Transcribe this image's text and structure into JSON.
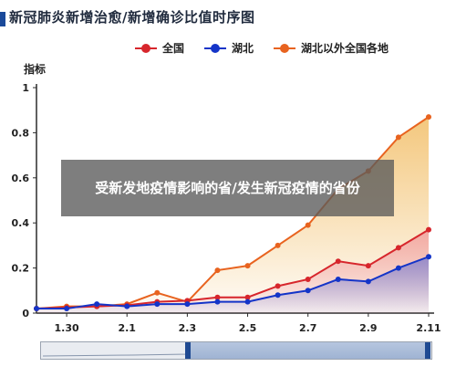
{
  "header": {
    "title": "新冠肺炎新增治愈/新增确诊比值时序图"
  },
  "overlay": {
    "caption": "受新发地疫情影响的省/发生新冠疫情的省份"
  },
  "colors": {
    "national": "#d7262c",
    "hubei": "#1434c8",
    "outside": "#e8631f",
    "title_bar": "#1a4a9a"
  },
  "chart_data": {
    "type": "line",
    "title": "新冠肺炎新增治愈/新增确诊比值时序图",
    "ylabel": "指标",
    "xlabel": "",
    "ylim": [
      0,
      1
    ],
    "yticks": [
      "0",
      "0.2",
      "0.4",
      "0.6",
      "0.8",
      "1"
    ],
    "x": [
      "1.29",
      "1.30",
      "1.31",
      "2.1",
      "2.2",
      "2.3",
      "2.4",
      "2.5",
      "2.6",
      "2.7",
      "2.8",
      "2.9",
      "2.10",
      "2.11"
    ],
    "xtick_labels": [
      "1.30",
      "2.1",
      "2.3",
      "2.5",
      "2.7",
      "2.9",
      "2.11"
    ],
    "grid": false,
    "legend_position": "top",
    "series": [
      {
        "name": "全国",
        "color": "#d7262c",
        "values": [
          0.02,
          0.025,
          0.03,
          0.035,
          0.05,
          0.055,
          0.07,
          0.07,
          0.12,
          0.15,
          0.23,
          0.21,
          0.29,
          0.37
        ]
      },
      {
        "name": "湖北",
        "color": "#1434c8",
        "values": [
          0.02,
          0.02,
          0.04,
          0.03,
          0.04,
          0.04,
          0.05,
          0.05,
          0.08,
          0.1,
          0.15,
          0.14,
          0.2,
          0.25
        ]
      },
      {
        "name": "湖北以外全国各地",
        "color": "#e8631f",
        "values": [
          0.02,
          0.03,
          0.03,
          0.04,
          0.09,
          0.05,
          0.19,
          0.21,
          0.3,
          0.39,
          0.55,
          0.63,
          0.78,
          0.87
        ]
      }
    ]
  }
}
